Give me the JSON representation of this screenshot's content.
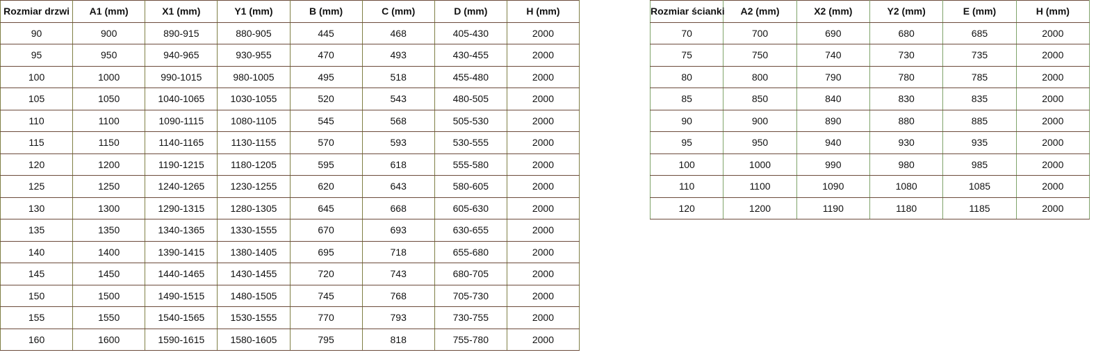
{
  "door_table": {
    "headers": [
      "Rozmiar drzwi",
      "A1 (mm)",
      "X1 (mm)",
      "Y1 (mm)",
      "B (mm)",
      "C (mm)",
      "D (mm)",
      "H (mm)"
    ],
    "rows": [
      [
        "90",
        "900",
        "890-915",
        "880-905",
        "445",
        "468",
        "405-430",
        "2000"
      ],
      [
        "95",
        "950",
        "940-965",
        "930-955",
        "470",
        "493",
        "430-455",
        "2000"
      ],
      [
        "100",
        "1000",
        "990-1015",
        "980-1005",
        "495",
        "518",
        "455-480",
        "2000"
      ],
      [
        "105",
        "1050",
        "1040-1065",
        "1030-1055",
        "520",
        "543",
        "480-505",
        "2000"
      ],
      [
        "110",
        "1100",
        "1090-1115",
        "1080-1105",
        "545",
        "568",
        "505-530",
        "2000"
      ],
      [
        "115",
        "1150",
        "1140-1165",
        "1130-1155",
        "570",
        "593",
        "530-555",
        "2000"
      ],
      [
        "120",
        "1200",
        "1190-1215",
        "1180-1205",
        "595",
        "618",
        "555-580",
        "2000"
      ],
      [
        "125",
        "1250",
        "1240-1265",
        "1230-1255",
        "620",
        "643",
        "580-605",
        "2000"
      ],
      [
        "130",
        "1300",
        "1290-1315",
        "1280-1305",
        "645",
        "668",
        "605-630",
        "2000"
      ],
      [
        "135",
        "1350",
        "1340-1365",
        "1330-1555",
        "670",
        "693",
        "630-655",
        "2000"
      ],
      [
        "140",
        "1400",
        "1390-1415",
        "1380-1405",
        "695",
        "718",
        "655-680",
        "2000"
      ],
      [
        "145",
        "1450",
        "1440-1465",
        "1430-1455",
        "720",
        "743",
        "680-705",
        "2000"
      ],
      [
        "150",
        "1500",
        "1490-1515",
        "1480-1505",
        "745",
        "768",
        "705-730",
        "2000"
      ],
      [
        "155",
        "1550",
        "1540-1565",
        "1530-1555",
        "770",
        "793",
        "730-755",
        "2000"
      ],
      [
        "160",
        "1600",
        "1590-1615",
        "1580-1605",
        "795",
        "818",
        "755-780",
        "2000"
      ]
    ]
  },
  "wall_table": {
    "headers": [
      "Rozmiar ścianki",
      "A2 (mm)",
      "X2 (mm)",
      "Y2 (mm)",
      "E (mm)",
      "H (mm)"
    ],
    "rows": [
      [
        "70",
        "700",
        "690",
        "680",
        "685",
        "2000"
      ],
      [
        "75",
        "750",
        "740",
        "730",
        "735",
        "2000"
      ],
      [
        "80",
        "800",
        "790",
        "780",
        "785",
        "2000"
      ],
      [
        "85",
        "850",
        "840",
        "830",
        "835",
        "2000"
      ],
      [
        "90",
        "900",
        "890",
        "880",
        "885",
        "2000"
      ],
      [
        "95",
        "950",
        "940",
        "930",
        "935",
        "2000"
      ],
      [
        "100",
        "1000",
        "990",
        "980",
        "985",
        "2000"
      ],
      [
        "110",
        "1100",
        "1090",
        "1080",
        "1085",
        "2000"
      ],
      [
        "120",
        "1200",
        "1190",
        "1180",
        "1185",
        "2000"
      ]
    ]
  }
}
